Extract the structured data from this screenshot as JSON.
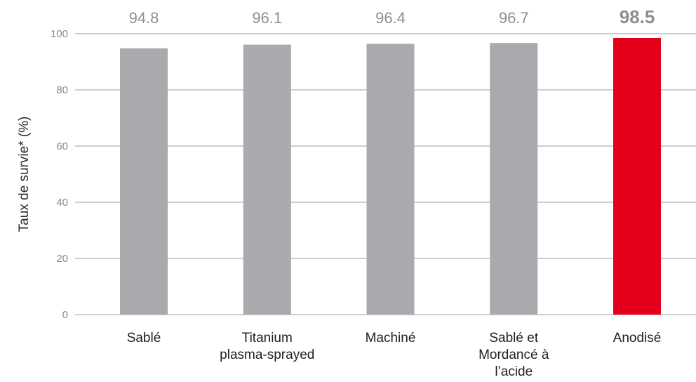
{
  "colors": {
    "bar_default": "#a9aaad",
    "bar_highlight": "#e4001b",
    "value_default": "#8f8f8f",
    "value_highlight": "#e4001b"
  },
  "chart_data": {
    "type": "bar",
    "title": "",
    "xlabel": "",
    "ylabel": "Taux de survie* (%)",
    "ylim": [
      0,
      100
    ],
    "yticks": [
      0,
      20,
      40,
      60,
      80,
      100
    ],
    "grid": true,
    "categories": [
      [
        "Sablé"
      ],
      [
        "Titanium",
        "plasma-sprayed"
      ],
      [
        "Machiné"
      ],
      [
        "Sablé et",
        "Mordancé à",
        "l’acide"
      ],
      [
        "Anodisé"
      ]
    ],
    "values": [
      94.8,
      96.1,
      96.4,
      96.7,
      98.5
    ],
    "value_labels": [
      "94.8",
      "96.1",
      "96.4",
      "96.7",
      "98.5"
    ],
    "highlight_index": 4
  }
}
